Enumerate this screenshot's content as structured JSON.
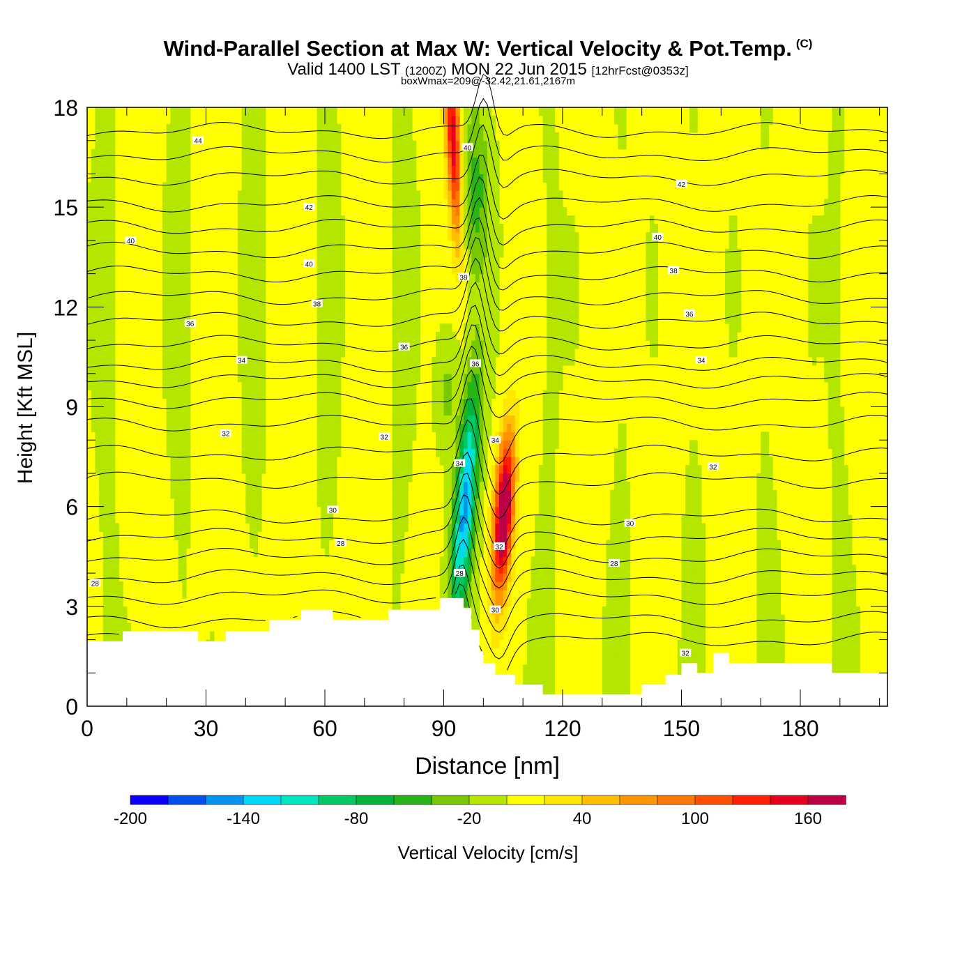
{
  "title": "Wind-Parallel Section at Max W: Vertical Velocity & Pot.Temp.",
  "title_mark": "(C)",
  "subtitle": {
    "part1": "Valid 1400 LST",
    "part2": "(1200Z)",
    "part3": "MON 22 Jun 2015",
    "part4": "[12hrFcst@0353z]"
  },
  "subtitle2": "boxWmax=209@-32.42,21.61,2167m",
  "chart_data": {
    "type": "heatmap",
    "xlabel": "Distance [nm]",
    "ylabel": "Height [Kft MSL]",
    "xlim": [
      0,
      202
    ],
    "ylim": [
      0,
      18
    ],
    "xticks": [
      0,
      30,
      60,
      90,
      120,
      150,
      180
    ],
    "yticks": [
      0,
      3,
      6,
      9,
      12,
      15,
      18
    ],
    "colorbar": {
      "label": "Vertical Velocity [cm/s]",
      "ticks": [
        -200,
        -140,
        -80,
        -20,
        40,
        100,
        160
      ],
      "levels": [
        -200,
        -180,
        -160,
        -140,
        -120,
        -100,
        -80,
        -60,
        -40,
        -20,
        0,
        20,
        40,
        60,
        80,
        100,
        120,
        140,
        160,
        180
      ],
      "colors": [
        "#0a00f5",
        "#0050f0",
        "#0096f0",
        "#00d8f5",
        "#00e6c0",
        "#00c864",
        "#00b43c",
        "#28b414",
        "#78c800",
        "#b4e600",
        "#ffff00",
        "#ffe600",
        "#ffbe00",
        "#ff9600",
        "#ff7800",
        "#ff5000",
        "#ff1e00",
        "#e6001e",
        "#be0046"
      ]
    },
    "terrain": {
      "x": [
        0,
        9,
        9,
        28,
        28,
        35,
        35,
        46,
        46,
        54,
        54,
        62,
        62,
        76,
        76,
        89,
        89,
        95,
        95,
        97,
        97,
        99,
        99,
        100,
        100,
        103,
        103,
        108,
        108,
        115,
        115,
        140,
        140,
        146,
        146,
        150,
        150,
        154,
        154,
        158,
        158,
        162,
        162,
        188,
        188,
        202
      ],
      "height": [
        1.95,
        1.95,
        2.25,
        2.25,
        1.95,
        1.95,
        2.25,
        2.25,
        2.6,
        2.6,
        2.9,
        2.9,
        2.6,
        2.6,
        2.9,
        2.9,
        3.25,
        3.25,
        2.95,
        2.95,
        2.3,
        2.3,
        1.65,
        1.65,
        1.3,
        1.3,
        0.95,
        0.95,
        0.65,
        0.65,
        0.35,
        0.35,
        0.65,
        0.65,
        0.95,
        0.95,
        1.3,
        1.3,
        1.0,
        1.0,
        1.6,
        1.6,
        1.3,
        1.3,
        1.0,
        1.0
      ]
    },
    "updraft_max": {
      "x": 105,
      "height": 5.5,
      "w": 209
    },
    "downdraft_min": {
      "x": 95,
      "height": 5.5,
      "w": -150
    },
    "theta_contours": [
      {
        "base": 2.0,
        "label": "28",
        "labels_at": [
          [
            2,
            3.7
          ]
        ]
      },
      {
        "base": 2.6
      },
      {
        "base": 3.3
      },
      {
        "base": 3.9
      },
      {
        "base": 4.5,
        "label": "28",
        "labels_at": [
          [
            64,
            4.9
          ],
          [
            133,
            4.3
          ]
        ]
      },
      {
        "base": 5.1
      },
      {
        "base": 5.7,
        "label": "30",
        "labels_at": [
          [
            62,
            5.9
          ],
          [
            137,
            5.5
          ]
        ]
      },
      {
        "base": 6.8
      },
      {
        "base": 7.6,
        "label": "32",
        "labels_at": [
          [
            35,
            8.2
          ],
          [
            75,
            8.1
          ],
          [
            158,
            7.2
          ]
        ]
      },
      {
        "base": 8.5
      },
      {
        "base": 9.2
      },
      {
        "base": 9.8,
        "label": "34",
        "labels_at": [
          [
            39,
            10.4
          ],
          [
            155,
            10.4
          ]
        ]
      },
      {
        "base": 10.3
      },
      {
        "base": 10.9,
        "label": "36",
        "labels_at": [
          [
            26,
            11.5
          ],
          [
            80,
            10.8
          ],
          [
            152,
            11.8
          ]
        ]
      },
      {
        "base": 11.6
      },
      {
        "base": 12.3,
        "label": "38",
        "labels_at": [
          [
            58,
            12.1
          ],
          [
            148,
            13.1
          ]
        ]
      },
      {
        "base": 13.0
      },
      {
        "base": 13.7,
        "label": "40",
        "labels_at": [
          [
            11,
            14.0
          ],
          [
            56,
            13.3
          ],
          [
            144,
            14.1
          ]
        ]
      },
      {
        "base": 14.4
      },
      {
        "base": 15.1,
        "label": "42",
        "labels_at": [
          [
            56,
            15.0
          ],
          [
            150,
            15.7
          ]
        ]
      },
      {
        "base": 15.9
      },
      {
        "base": 16.6,
        "label": "44",
        "labels_at": [
          [
            28,
            17.0
          ]
        ]
      },
      {
        "base": 17.3
      }
    ],
    "core_labels": [
      {
        "label": "40",
        "x": 96,
        "height": 16.8
      },
      {
        "label": "38",
        "x": 95,
        "height": 12.9
      },
      {
        "label": "36",
        "x": 98,
        "height": 10.3
      },
      {
        "label": "34",
        "x": 94,
        "height": 7.3
      },
      {
        "label": "34",
        "x": 103,
        "height": 8.0
      },
      {
        "label": "32",
        "x": 104,
        "height": 4.8
      },
      {
        "label": "28",
        "x": 94,
        "height": 4.0
      },
      {
        "label": "30",
        "x": 103,
        "height": 2.9
      },
      {
        "label": "32",
        "x": 151,
        "height": 1.6
      }
    ]
  }
}
